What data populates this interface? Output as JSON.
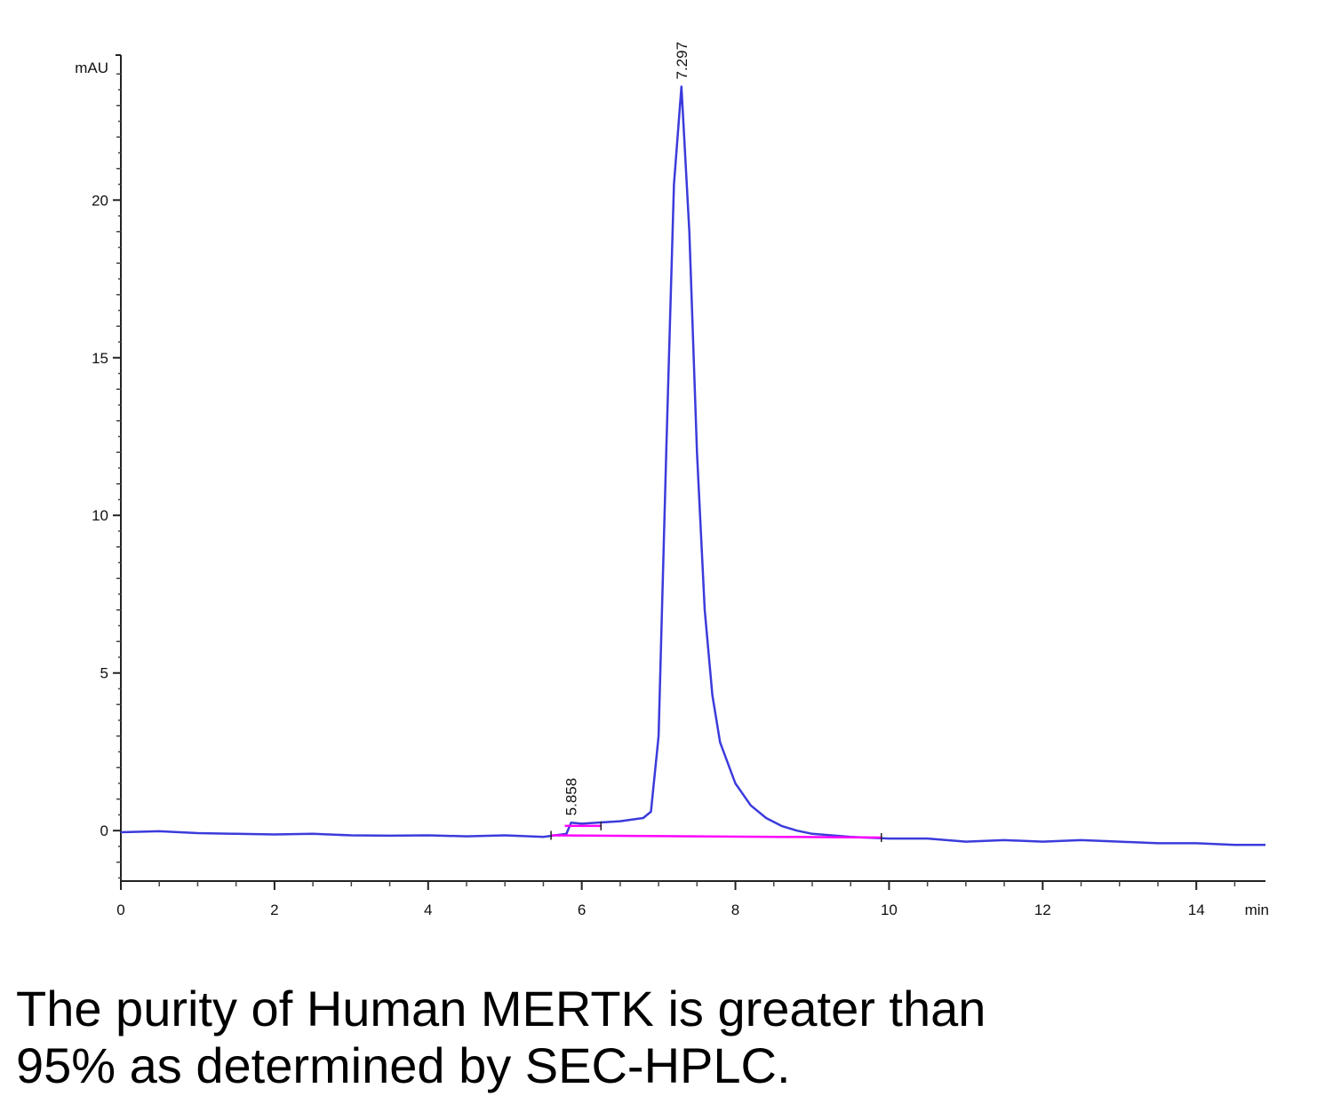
{
  "chart_data": {
    "type": "line",
    "title": "",
    "xlabel": "min",
    "ylabel": "mAU",
    "xlim": [
      0,
      14.9
    ],
    "ylim": [
      -1.6,
      24.6
    ],
    "x_ticks": [
      "0",
      "2",
      "4",
      "6",
      "8",
      "10",
      "12",
      "14"
    ],
    "y_ticks": [
      "0",
      "5",
      "10",
      "15",
      "20"
    ],
    "grid": false,
    "series": [
      {
        "color": "#3b3bdc",
        "x": [
          0,
          0.5,
          1.0,
          1.5,
          2.0,
          2.5,
          3.0,
          3.5,
          4.0,
          4.5,
          5.0,
          5.5,
          5.8,
          5.86,
          6.0,
          6.2,
          6.5,
          6.8,
          6.9,
          7.0,
          7.1,
          7.2,
          7.297,
          7.4,
          7.5,
          7.6,
          7.7,
          7.8,
          8.0,
          8.2,
          8.4,
          8.6,
          8.8,
          9.0,
          9.5,
          10.0,
          10.5,
          11.0,
          11.5,
          12.0,
          12.5,
          13.0,
          13.5,
          14.0,
          14.5,
          14.9
        ],
        "y": [
          -0.05,
          -0.02,
          -0.08,
          -0.1,
          -0.12,
          -0.1,
          -0.15,
          -0.16,
          -0.15,
          -0.18,
          -0.15,
          -0.2,
          -0.1,
          0.25,
          0.22,
          0.25,
          0.3,
          0.4,
          0.6,
          3.0,
          12.0,
          20.5,
          23.6,
          19.0,
          12.0,
          7.0,
          4.3,
          2.8,
          1.5,
          0.8,
          0.4,
          0.15,
          0.0,
          -0.1,
          -0.2,
          -0.25,
          -0.25,
          -0.35,
          -0.3,
          -0.35,
          -0.3,
          -0.35,
          -0.4,
          -0.4,
          -0.45,
          -0.45
        ]
      },
      {
        "color": "#ff00ff",
        "x": [
          5.6,
          9.9
        ],
        "y": [
          -0.15,
          -0.22
        ]
      },
      {
        "color": "#ff00ff",
        "x": [
          5.78,
          6.25
        ],
        "y": [
          0.15,
          0.15
        ]
      }
    ],
    "annotations": [
      {
        "x": 5.858,
        "y": 0.25,
        "text": "5.858"
      },
      {
        "x": 7.297,
        "y": 23.6,
        "text": "7.297"
      }
    ]
  },
  "caption": {
    "line1": "The purity of Human MERTK is greater than",
    "line2": "95% as determined by SEC-HPLC."
  }
}
